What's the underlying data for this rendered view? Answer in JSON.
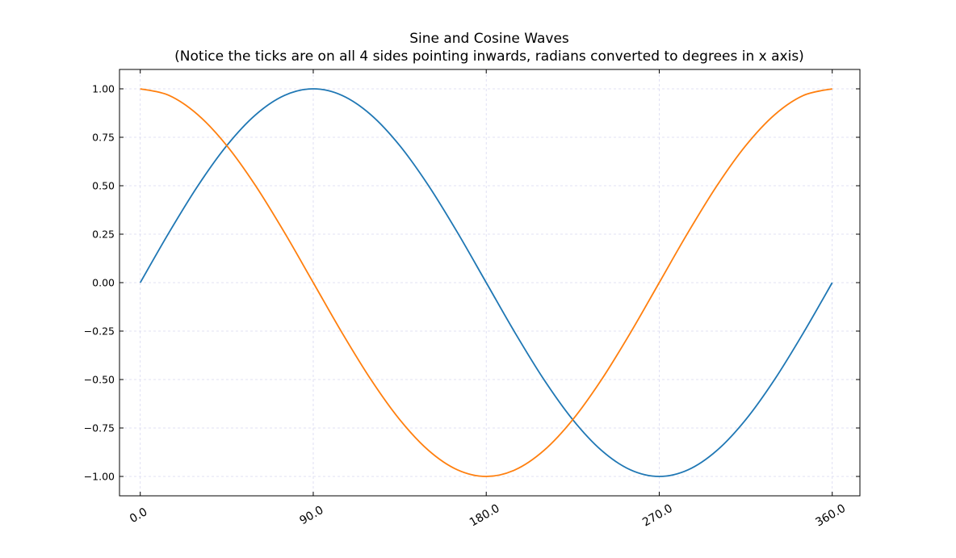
{
  "chart_data": {
    "type": "line",
    "title": "Sine and Cosine Waves",
    "subtitle": "(Notice the ticks are on all 4 sides pointing inwards, radians converted to degrees in x axis)",
    "xlim": [
      -10.8,
      374.4
    ],
    "ylim": [
      -1.1,
      1.1
    ],
    "x_ticks": [
      0,
      90,
      180,
      270,
      360
    ],
    "x_tick_labels": [
      "0.0",
      "90.0",
      "180.0",
      "270.0",
      "360.0"
    ],
    "y_ticks": [
      1.0,
      0.75,
      0.5,
      0.25,
      0.0,
      -0.25,
      -0.5,
      -0.75,
      -1.0
    ],
    "y_tick_labels": [
      "1.00",
      "0.75",
      "0.50",
      "0.25",
      "0.00",
      "−0.25",
      "−0.50",
      "−0.75",
      "−1.00"
    ],
    "x_tick_label_rotation": 30,
    "grid": true,
    "grid_color": "#d8d8f0",
    "ticks_direction": "in",
    "ticks_all_sides": true,
    "x": [
      0,
      15,
      30,
      45,
      60,
      75,
      90,
      105,
      120,
      135,
      150,
      165,
      180,
      195,
      210,
      225,
      240,
      255,
      270,
      285,
      300,
      315,
      330,
      345,
      360
    ],
    "series": [
      {
        "color": "#1f77b4",
        "values": [
          0.0,
          0.259,
          0.5,
          0.707,
          0.866,
          0.966,
          1.0,
          0.966,
          0.866,
          0.707,
          0.5,
          0.259,
          0.0,
          -0.259,
          -0.5,
          -0.707,
          -0.866,
          -0.966,
          -1.0,
          -0.966,
          -0.866,
          -0.707,
          -0.5,
          -0.259,
          0.0
        ]
      },
      {
        "color": "#ff7f0e",
        "values": [
          1.0,
          0.966,
          0.866,
          0.707,
          0.5,
          0.259,
          0.0,
          -0.259,
          -0.5,
          -0.707,
          -0.866,
          -0.966,
          -1.0,
          -0.966,
          -0.866,
          -0.707,
          -0.5,
          -0.259,
          0.0,
          0.259,
          0.5,
          0.707,
          0.866,
          0.966,
          1.0
        ]
      }
    ]
  }
}
